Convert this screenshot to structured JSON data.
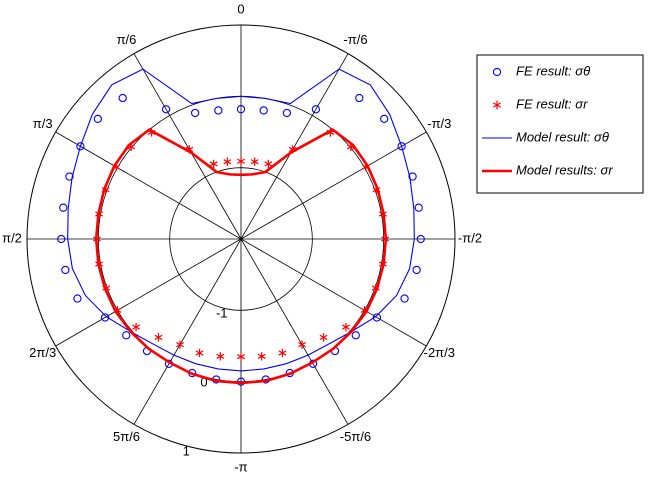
{
  "chart_data": {
    "type": "polar",
    "theta_zero": "top",
    "theta_direction": "counterclockwise",
    "rlim": [
      -2,
      1
    ],
    "rticks": [
      -1,
      0,
      1
    ],
    "thetaticks": [
      0,
      {
        "value": 0.5236,
        "label": "π/6"
      },
      {
        "value": 1.0472,
        "label": "π/3"
      },
      {
        "value": 1.5708,
        "label": "π/2"
      },
      {
        "value": 2.0944,
        "label": "2π/3"
      },
      {
        "value": 2.618,
        "label": "5π/6"
      },
      {
        "value": -3.1416,
        "label": "-π"
      },
      {
        "value": -2.618,
        "label": "-5π/6"
      },
      {
        "value": -2.0944,
        "label": "-2π/3"
      },
      {
        "value": -1.5708,
        "label": "-π/2"
      },
      {
        "value": -1.0472,
        "label": "-π/3"
      },
      {
        "value": -0.5236,
        "label": "-π/6"
      }
    ],
    "legend": "right",
    "theta": [
      -3.1416,
      -2.9671,
      -2.7925,
      -2.618,
      -2.4435,
      -2.2689,
      -2.0944,
      -1.9199,
      -1.7453,
      -1.5708,
      -1.3963,
      -1.2217,
      -1.0472,
      -0.8727,
      -0.6981,
      -0.5236,
      -0.3491,
      -0.1745,
      0,
      0.1745,
      0.3491,
      0.5236,
      0.6981,
      0.8727,
      1.0472,
      1.2217,
      1.3963,
      1.5708,
      1.7453,
      1.9199,
      2.0944,
      2.2689,
      2.4435,
      2.618,
      2.7925,
      2.9671
    ],
    "series": [
      {
        "name": "FE result: σθ",
        "color": "#0000ff",
        "style": "circle",
        "values": [
          0.0,
          0.0,
          0.0,
          0.02,
          0.05,
          0.1,
          0.2,
          0.44,
          0.5,
          0.52,
          0.53,
          0.56,
          0.6,
          0.62,
          0.58,
          0.1,
          -0.12,
          -0.17,
          -0.18,
          -0.17,
          -0.12,
          0.1,
          0.58,
          0.62,
          0.6,
          0.56,
          0.53,
          0.52,
          0.5,
          0.44,
          0.2,
          0.1,
          0.05,
          0.02,
          0.0,
          0.0
        ]
      },
      {
        "name": "FE result: σr",
        "color": "#ff0000",
        "style": "star",
        "values": [
          -0.35,
          -0.33,
          -0.3,
          -0.29,
          -0.2,
          -0.08,
          0.0,
          0.01,
          0.02,
          0.02,
          0.02,
          0.02,
          0.02,
          0.01,
          -0.05,
          -0.55,
          -0.88,
          -0.9,
          -0.91,
          -0.9,
          -0.88,
          -0.55,
          -0.05,
          0.01,
          0.02,
          0.02,
          0.02,
          0.02,
          0.02,
          0.01,
          0.0,
          -0.08,
          -0.2,
          -0.29,
          -0.3,
          -0.33
        ]
      },
      {
        "name": "Model result: σθ",
        "color": "#0000ff",
        "style": "thin-line",
        "values": [
          -0.15,
          -0.15,
          -0.14,
          -0.12,
          -0.08,
          0.02,
          0.18,
          0.32,
          0.4,
          0.43,
          0.46,
          0.52,
          0.6,
          0.72,
          0.82,
          0.75,
          0.02,
          0.0,
          0.0,
          0.0,
          0.02,
          0.75,
          0.82,
          0.72,
          0.6,
          0.52,
          0.46,
          0.43,
          0.4,
          0.32,
          0.18,
          0.02,
          -0.08,
          -0.12,
          -0.14,
          -0.15
        ]
      },
      {
        "name": "Model results: σr",
        "color": "#ff0000",
        "style": "thick-line",
        "values": [
          0.02,
          0.02,
          0.01,
          0.0,
          0.01,
          0.02,
          0.03,
          0.03,
          0.03,
          0.03,
          0.03,
          0.04,
          0.05,
          0.05,
          0.0,
          -0.6,
          -1.0,
          -1.08,
          -1.1,
          -1.08,
          -1.0,
          -0.6,
          0.0,
          0.05,
          0.05,
          0.04,
          0.03,
          0.03,
          0.03,
          0.03,
          0.03,
          0.02,
          0.01,
          0.0,
          0.01,
          0.02
        ]
      }
    ]
  }
}
